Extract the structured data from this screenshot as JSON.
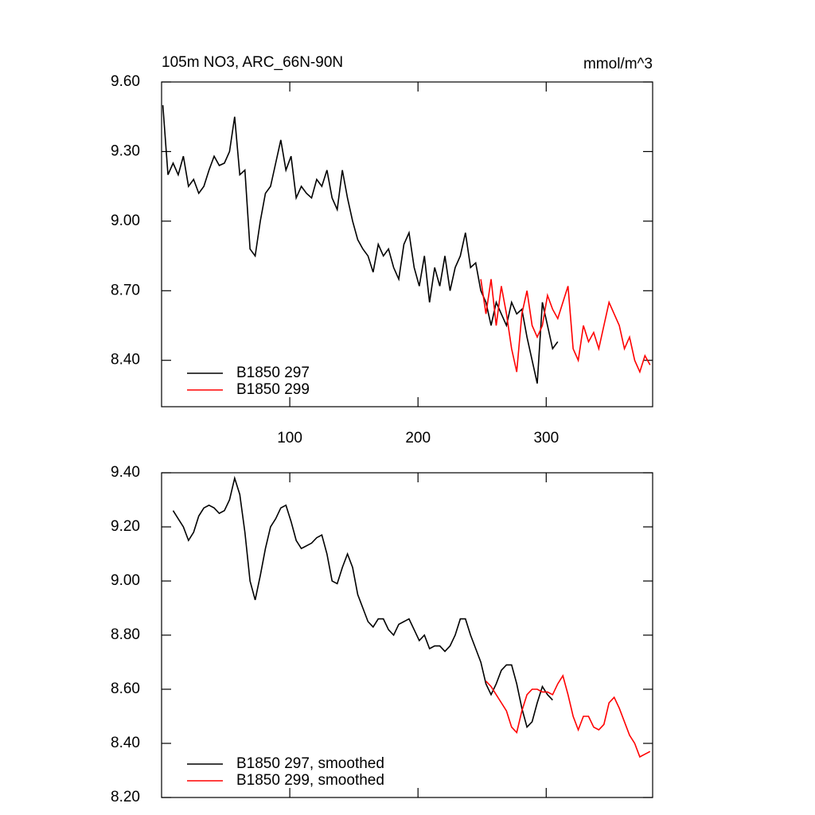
{
  "chart_data": [
    {
      "type": "line",
      "title": "105m NO3, ARC_66N-90N",
      "units": "mmol/m^3",
      "x": [
        1,
        5,
        9,
        13,
        17,
        21,
        25,
        29,
        33,
        37,
        41,
        45,
        49,
        53,
        57,
        61,
        65,
        69,
        73,
        77,
        81,
        85,
        89,
        93,
        97,
        101,
        105,
        109,
        113,
        117,
        121,
        125,
        129,
        133,
        137,
        141,
        145,
        149,
        153,
        157,
        161,
        165,
        169,
        173,
        177,
        181,
        185,
        189,
        193,
        197,
        201,
        205,
        209,
        213,
        217,
        221,
        225,
        229,
        233,
        237,
        241,
        245,
        249,
        253,
        257,
        261,
        265,
        269,
        273,
        277,
        281,
        285,
        289,
        293,
        297,
        301,
        305,
        309,
        313,
        317,
        321,
        325,
        329,
        333,
        337,
        341,
        345,
        349,
        353,
        357,
        361,
        365,
        369,
        373,
        377,
        381
      ],
      "series": [
        {
          "name": "B1850 297",
          "color": "#000000",
          "values": [
            9.5,
            9.2,
            9.25,
            9.2,
            9.28,
            9.15,
            9.18,
            9.12,
            9.15,
            9.22,
            9.28,
            9.24,
            9.25,
            9.3,
            9.45,
            9.2,
            9.22,
            8.88,
            8.85,
            9.0,
            9.12,
            9.15,
            9.25,
            9.35,
            9.22,
            9.28,
            9.1,
            9.15,
            9.12,
            9.1,
            9.18,
            9.15,
            9.22,
            9.1,
            9.05,
            9.22,
            9.1,
            9.0,
            8.92,
            8.88,
            8.85,
            8.78,
            8.9,
            8.85,
            8.88,
            8.8,
            8.75,
            8.9,
            8.95,
            8.8,
            8.72,
            8.85,
            8.65,
            8.8,
            8.72,
            8.85,
            8.7,
            8.8,
            8.85,
            8.95,
            8.8,
            8.82,
            8.7,
            8.65,
            8.55,
            8.65,
            8.6,
            8.55,
            8.65,
            8.6,
            8.62,
            8.5,
            8.4,
            8.3,
            8.65,
            8.55,
            8.45,
            8.48,
            null,
            null,
            null,
            null,
            null,
            null,
            null,
            null,
            null,
            null,
            null,
            null,
            null,
            null,
            null,
            null,
            null,
            null
          ]
        },
        {
          "name": "B1850 299",
          "color": "#ff0000",
          "values": [
            null,
            null,
            null,
            null,
            null,
            null,
            null,
            null,
            null,
            null,
            null,
            null,
            null,
            null,
            null,
            null,
            null,
            null,
            null,
            null,
            null,
            null,
            null,
            null,
            null,
            null,
            null,
            null,
            null,
            null,
            null,
            null,
            null,
            null,
            null,
            null,
            null,
            null,
            null,
            null,
            null,
            null,
            null,
            null,
            null,
            null,
            null,
            null,
            null,
            null,
            null,
            null,
            null,
            null,
            null,
            null,
            null,
            null,
            null,
            null,
            null,
            null,
            8.75,
            8.6,
            8.75,
            8.55,
            8.72,
            8.6,
            8.45,
            8.35,
            8.6,
            8.7,
            8.55,
            8.5,
            8.55,
            8.68,
            8.62,
            8.58,
            8.65,
            8.72,
            8.45,
            8.4,
            8.55,
            8.48,
            8.52,
            8.45,
            8.55,
            8.65,
            8.6,
            8.55,
            8.45,
            8.5,
            8.4,
            8.35,
            8.42,
            8.38
          ]
        }
      ],
      "xlim": [
        0,
        383
      ],
      "xticks": [
        100,
        200,
        300
      ],
      "ylim": [
        8.2,
        9.6
      ],
      "yticks": [
        {
          "value": 8.4,
          "label": "8.40"
        },
        {
          "value": 8.7,
          "label": "8.70"
        },
        {
          "value": 9.0,
          "label": "9.00"
        },
        {
          "value": 9.3,
          "label": "9.30"
        },
        {
          "value": 9.6,
          "label": "9.60"
        }
      ],
      "legend": "lower left"
    },
    {
      "type": "line",
      "x": [
        1,
        5,
        9,
        13,
        17,
        21,
        25,
        29,
        33,
        37,
        41,
        45,
        49,
        53,
        57,
        61,
        65,
        69,
        73,
        77,
        81,
        85,
        89,
        93,
        97,
        101,
        105,
        109,
        113,
        117,
        121,
        125,
        129,
        133,
        137,
        141,
        145,
        149,
        153,
        157,
        161,
        165,
        169,
        173,
        177,
        181,
        185,
        189,
        193,
        197,
        201,
        205,
        209,
        213,
        217,
        221,
        225,
        229,
        233,
        237,
        241,
        245,
        249,
        253,
        257,
        261,
        265,
        269,
        273,
        277,
        281,
        285,
        289,
        293,
        297,
        301,
        305,
        309,
        313,
        317,
        321,
        325,
        329,
        333,
        337,
        341,
        345,
        349,
        353,
        357,
        361,
        365,
        369,
        373,
        377,
        381
      ],
      "series": [
        {
          "name": "B1850 297, smoothed",
          "color": "#000000",
          "values": [
            null,
            null,
            9.26,
            9.23,
            9.2,
            9.15,
            9.18,
            9.24,
            9.27,
            9.28,
            9.27,
            9.25,
            9.26,
            9.3,
            9.38,
            9.32,
            9.18,
            9.0,
            8.93,
            9.02,
            9.12,
            9.2,
            9.23,
            9.27,
            9.28,
            9.22,
            9.15,
            9.12,
            9.13,
            9.14,
            9.16,
            9.17,
            9.1,
            9.0,
            8.99,
            9.05,
            9.1,
            9.05,
            8.95,
            8.9,
            8.85,
            8.83,
            8.86,
            8.86,
            8.82,
            8.8,
            8.84,
            8.85,
            8.86,
            8.82,
            8.78,
            8.8,
            8.75,
            8.76,
            8.76,
            8.74,
            8.76,
            8.8,
            8.86,
            8.86,
            8.8,
            8.75,
            8.7,
            8.62,
            8.58,
            8.62,
            8.67,
            8.69,
            8.69,
            8.62,
            8.53,
            8.46,
            8.48,
            8.55,
            8.61,
            8.58,
            8.56,
            null,
            null,
            null,
            null,
            null,
            null,
            null,
            null,
            null,
            null,
            null,
            null,
            null,
            null,
            null,
            null,
            null,
            null,
            null
          ]
        },
        {
          "name": "B1850 299, smoothed",
          "color": "#ff0000",
          "values": [
            null,
            null,
            null,
            null,
            null,
            null,
            null,
            null,
            null,
            null,
            null,
            null,
            null,
            null,
            null,
            null,
            null,
            null,
            null,
            null,
            null,
            null,
            null,
            null,
            null,
            null,
            null,
            null,
            null,
            null,
            null,
            null,
            null,
            null,
            null,
            null,
            null,
            null,
            null,
            null,
            null,
            null,
            null,
            null,
            null,
            null,
            null,
            null,
            null,
            null,
            null,
            null,
            null,
            null,
            null,
            null,
            null,
            null,
            null,
            null,
            null,
            null,
            null,
            8.63,
            8.61,
            8.58,
            8.55,
            8.52,
            8.46,
            8.44,
            8.52,
            8.58,
            8.6,
            8.6,
            8.59,
            8.59,
            8.58,
            8.62,
            8.65,
            8.58,
            8.5,
            8.45,
            8.5,
            8.5,
            8.46,
            8.45,
            8.47,
            8.55,
            8.57,
            8.53,
            8.48,
            8.43,
            8.4,
            8.35,
            8.36,
            8.37
          ]
        }
      ],
      "xlim": [
        0,
        383
      ],
      "xticks": [
        100,
        200,
        300
      ],
      "ylim": [
        8.2,
        9.4
      ],
      "yticks": [
        {
          "value": 8.2,
          "label": "8.20"
        },
        {
          "value": 8.4,
          "label": "8.40"
        },
        {
          "value": 8.6,
          "label": "8.60"
        },
        {
          "value": 8.8,
          "label": "8.80"
        },
        {
          "value": 9.0,
          "label": "9.00"
        },
        {
          "value": 9.2,
          "label": "9.20"
        },
        {
          "value": 9.4,
          "label": "9.40"
        }
      ],
      "legend": "lower left"
    }
  ]
}
